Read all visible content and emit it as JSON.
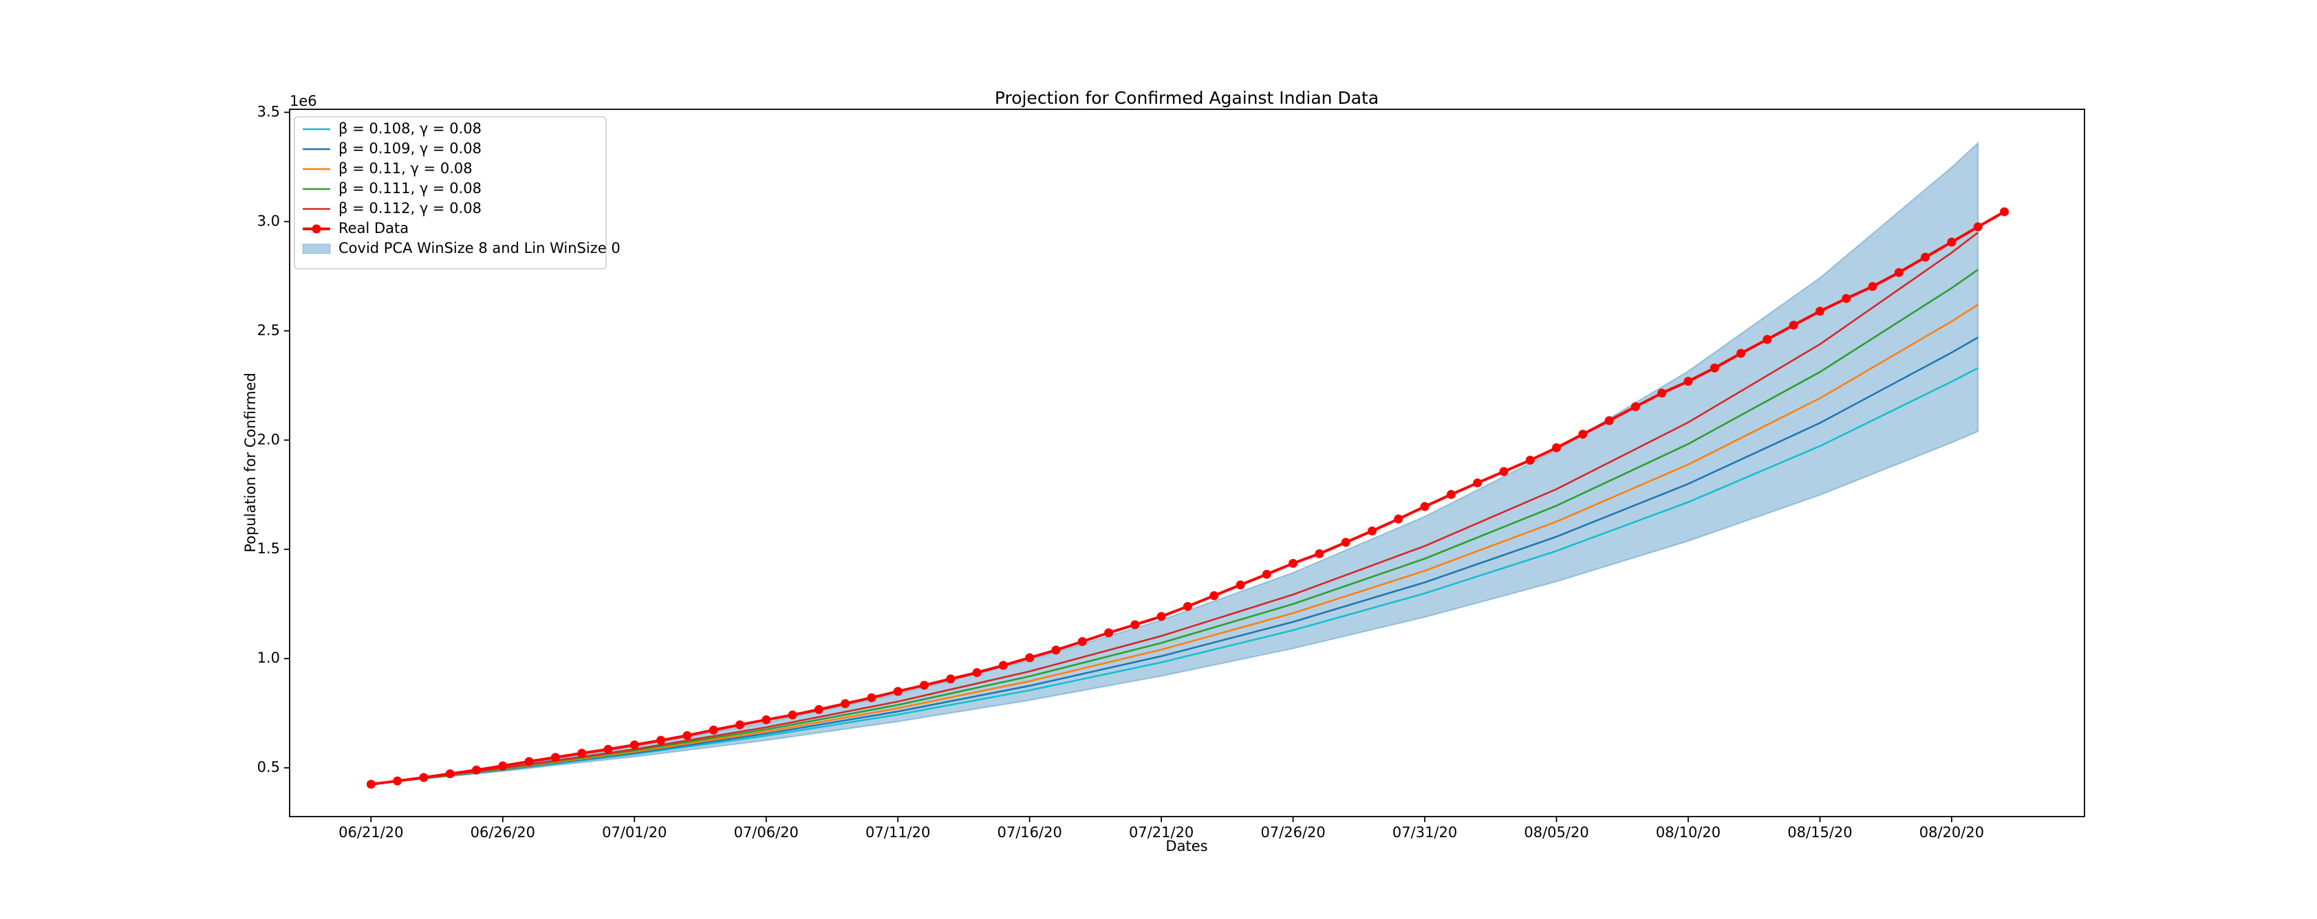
{
  "chart_data": {
    "type": "line",
    "title": "Projection for Confirmed Against Indian Data",
    "x_label": "Dates",
    "y_label": "Population for Confirmed",
    "y_offset_text": "1e6",
    "xlim": [
      "2020-06-17T21:50Z",
      "2020-08-25T01:00Z"
    ],
    "xticks": [
      {
        "value": "2020-06-21",
        "label": "06/21/20"
      },
      {
        "value": "2020-06-26",
        "label": "06/26/20"
      },
      {
        "value": "2020-07-01",
        "label": "07/01/20"
      },
      {
        "value": "2020-07-06",
        "label": "07/06/20"
      },
      {
        "value": "2020-07-11",
        "label": "07/11/20"
      },
      {
        "value": "2020-07-16",
        "label": "07/16/20"
      },
      {
        "value": "2020-07-21",
        "label": "07/21/20"
      },
      {
        "value": "2020-07-26",
        "label": "07/26/20"
      },
      {
        "value": "2020-07-31",
        "label": "07/31/20"
      },
      {
        "value": "2020-08-05",
        "label": "08/05/20"
      },
      {
        "value": "2020-08-10",
        "label": "08/10/20"
      },
      {
        "value": "2020-08-15",
        "label": "08/15/20"
      },
      {
        "value": "2020-08-20",
        "label": "08/20/20"
      }
    ],
    "ylim": [
      0.277,
      3.514
    ],
    "yticks": [
      0.5,
      {
        "value": 1,
        "label": "1.0"
      },
      1.5,
      {
        "value": 2,
        "label": "2.0"
      },
      2.5,
      {
        "value": 3,
        "label": "3.0"
      },
      3.5
    ],
    "legend": "upper left",
    "series": [
      {
        "name": "β = 0.108, γ = 0.08",
        "color": "#17becf",
        "x": [
          "2020-06-21",
          "2020-06-26",
          "2020-07-01",
          "2020-07-06",
          "2020-07-11",
          "2020-07-16",
          "2020-07-21",
          "2020-07-26",
          "2020-07-31",
          "2020-08-05",
          "2020-08-10",
          "2020-08-15",
          "2020-08-20",
          "2020-08-21"
        ],
        "values": [
          0.426,
          0.4897,
          0.5629,
          0.6471,
          0.7438,
          0.855,
          0.9829,
          1.1298,
          1.2987,
          1.4929,
          1.7161,
          1.9727,
          2.2676,
          2.33
        ]
      },
      {
        "name": "β = 0.109, γ = 0.08",
        "color": "#1f77b4",
        "x": [
          "2020-06-21",
          "2020-06-26",
          "2020-07-01",
          "2020-07-06",
          "2020-07-11",
          "2020-07-16",
          "2020-07-21",
          "2020-07-26",
          "2020-07-31",
          "2020-08-05",
          "2020-08-10",
          "2020-08-15",
          "2020-08-20",
          "2020-08-21"
        ],
        "values": [
          0.426,
          0.492,
          0.5683,
          0.6564,
          0.7581,
          0.8756,
          1.0113,
          1.168,
          1.349,
          1.5581,
          1.7996,
          2.0785,
          2.4007,
          2.47
        ]
      },
      {
        "name": "β = 0.11, γ = 0.08",
        "color": "#ff7f0e",
        "x": [
          "2020-06-21",
          "2020-06-26",
          "2020-07-01",
          "2020-07-06",
          "2020-07-11",
          "2020-07-16",
          "2020-07-21",
          "2020-07-26",
          "2020-07-31",
          "2020-08-05",
          "2020-08-10",
          "2020-08-15",
          "2020-08-20",
          "2020-08-21"
        ],
        "values": [
          0.426,
          0.4944,
          0.5738,
          0.6659,
          0.7728,
          0.8969,
          1.0409,
          1.208,
          1.402,
          1.6271,
          1.8883,
          2.1915,
          2.5434,
          2.62
        ]
      },
      {
        "name": "β = 0.111, γ = 0.08",
        "color": "#2ca02c",
        "x": [
          "2020-06-21",
          "2020-06-26",
          "2020-07-01",
          "2020-07-06",
          "2020-07-11",
          "2020-07-16",
          "2020-07-21",
          "2020-07-26",
          "2020-07-31",
          "2020-08-05",
          "2020-08-10",
          "2020-08-15",
          "2020-08-20",
          "2020-08-21"
        ],
        "values": [
          0.426,
          0.4968,
          0.5794,
          0.6757,
          0.788,
          0.919,
          1.0717,
          1.2498,
          1.4575,
          1.6998,
          1.9823,
          2.3117,
          2.6959,
          2.78
        ]
      },
      {
        "name": "β = 0.112, γ = 0.08",
        "color": "#d62728",
        "x": [
          "2020-06-21",
          "2020-06-26",
          "2020-07-01",
          "2020-07-06",
          "2020-07-11",
          "2020-07-16",
          "2020-07-21",
          "2020-07-26",
          "2020-07-31",
          "2020-08-05",
          "2020-08-10",
          "2020-08-15",
          "2020-08-20",
          "2020-08-21"
        ],
        "values": [
          0.426,
          0.4992,
          0.585,
          0.6856,
          0.8034,
          0.9415,
          1.1034,
          1.293,
          1.5153,
          1.7758,
          2.081,
          2.4387,
          2.8579,
          2.95
        ]
      },
      {
        "name": "Real Data",
        "color": "#ff0000",
        "markers": true,
        "x": [
          "2020-06-21",
          "2020-06-22",
          "2020-06-23",
          "2020-06-24",
          "2020-06-25",
          "2020-06-26",
          "2020-06-27",
          "2020-06-28",
          "2020-06-29",
          "2020-06-30",
          "2020-07-01",
          "2020-07-02",
          "2020-07-03",
          "2020-07-04",
          "2020-07-05",
          "2020-07-06",
          "2020-07-07",
          "2020-07-08",
          "2020-07-09",
          "2020-07-10",
          "2020-07-11",
          "2020-07-12",
          "2020-07-13",
          "2020-07-14",
          "2020-07-15",
          "2020-07-16",
          "2020-07-17",
          "2020-07-18",
          "2020-07-19",
          "2020-07-20",
          "2020-07-21",
          "2020-07-22",
          "2020-07-23",
          "2020-07-24",
          "2020-07-25",
          "2020-07-26",
          "2020-07-27",
          "2020-07-28",
          "2020-07-29",
          "2020-07-30",
          "2020-07-31",
          "2020-08-01",
          "2020-08-02",
          "2020-08-03",
          "2020-08-04",
          "2020-08-05",
          "2020-08-06",
          "2020-08-07",
          "2020-08-08",
          "2020-08-09",
          "2020-08-10",
          "2020-08-11",
          "2020-08-12",
          "2020-08-13",
          "2020-08-14",
          "2020-08-15",
          "2020-08-16",
          "2020-08-17",
          "2020-08-18",
          "2020-08-19",
          "2020-08-20",
          "2020-08-21",
          "2020-08-22"
        ],
        "values": [
          0.425,
          0.44,
          0.456,
          0.473,
          0.49,
          0.509,
          0.529,
          0.548,
          0.567,
          0.585,
          0.605,
          0.626,
          0.648,
          0.673,
          0.697,
          0.72,
          0.742,
          0.767,
          0.794,
          0.821,
          0.85,
          0.878,
          0.907,
          0.936,
          0.969,
          1.004,
          1.039,
          1.078,
          1.118,
          1.155,
          1.193,
          1.239,
          1.288,
          1.337,
          1.386,
          1.436,
          1.48,
          1.532,
          1.584,
          1.639,
          1.696,
          1.751,
          1.804,
          1.856,
          1.908,
          1.965,
          2.027,
          2.089,
          2.153,
          2.215,
          2.269,
          2.33,
          2.397,
          2.461,
          2.526,
          2.59,
          2.648,
          2.703,
          2.767,
          2.837,
          2.906,
          2.976,
          3.045
        ]
      }
    ],
    "band": {
      "name": "Covid PCA WinSize 8 and Lin WinSize 0",
      "color": "#1f77b4",
      "alpha": 0.35,
      "x": [
        "2020-06-21",
        "2020-06-26",
        "2020-07-01",
        "2020-07-06",
        "2020-07-11",
        "2020-07-16",
        "2020-07-21",
        "2020-07-26",
        "2020-07-31",
        "2020-08-05",
        "2020-08-10",
        "2020-08-15",
        "2020-08-20",
        "2020-08-21"
      ],
      "lower": [
        0.426,
        0.4844,
        0.5507,
        0.6262,
        0.7119,
        0.8095,
        0.9204,
        1.0464,
        1.1898,
        1.3528,
        1.5381,
        1.7488,
        1.9884,
        2.04
      ],
      "upper": [
        0.426,
        0.5046,
        0.5977,
        0.7079,
        0.8385,
        0.9932,
        1.1764,
        1.3934,
        1.6504,
        1.9549,
        2.3155,
        2.7426,
        3.2485,
        3.36
      ]
    }
  }
}
